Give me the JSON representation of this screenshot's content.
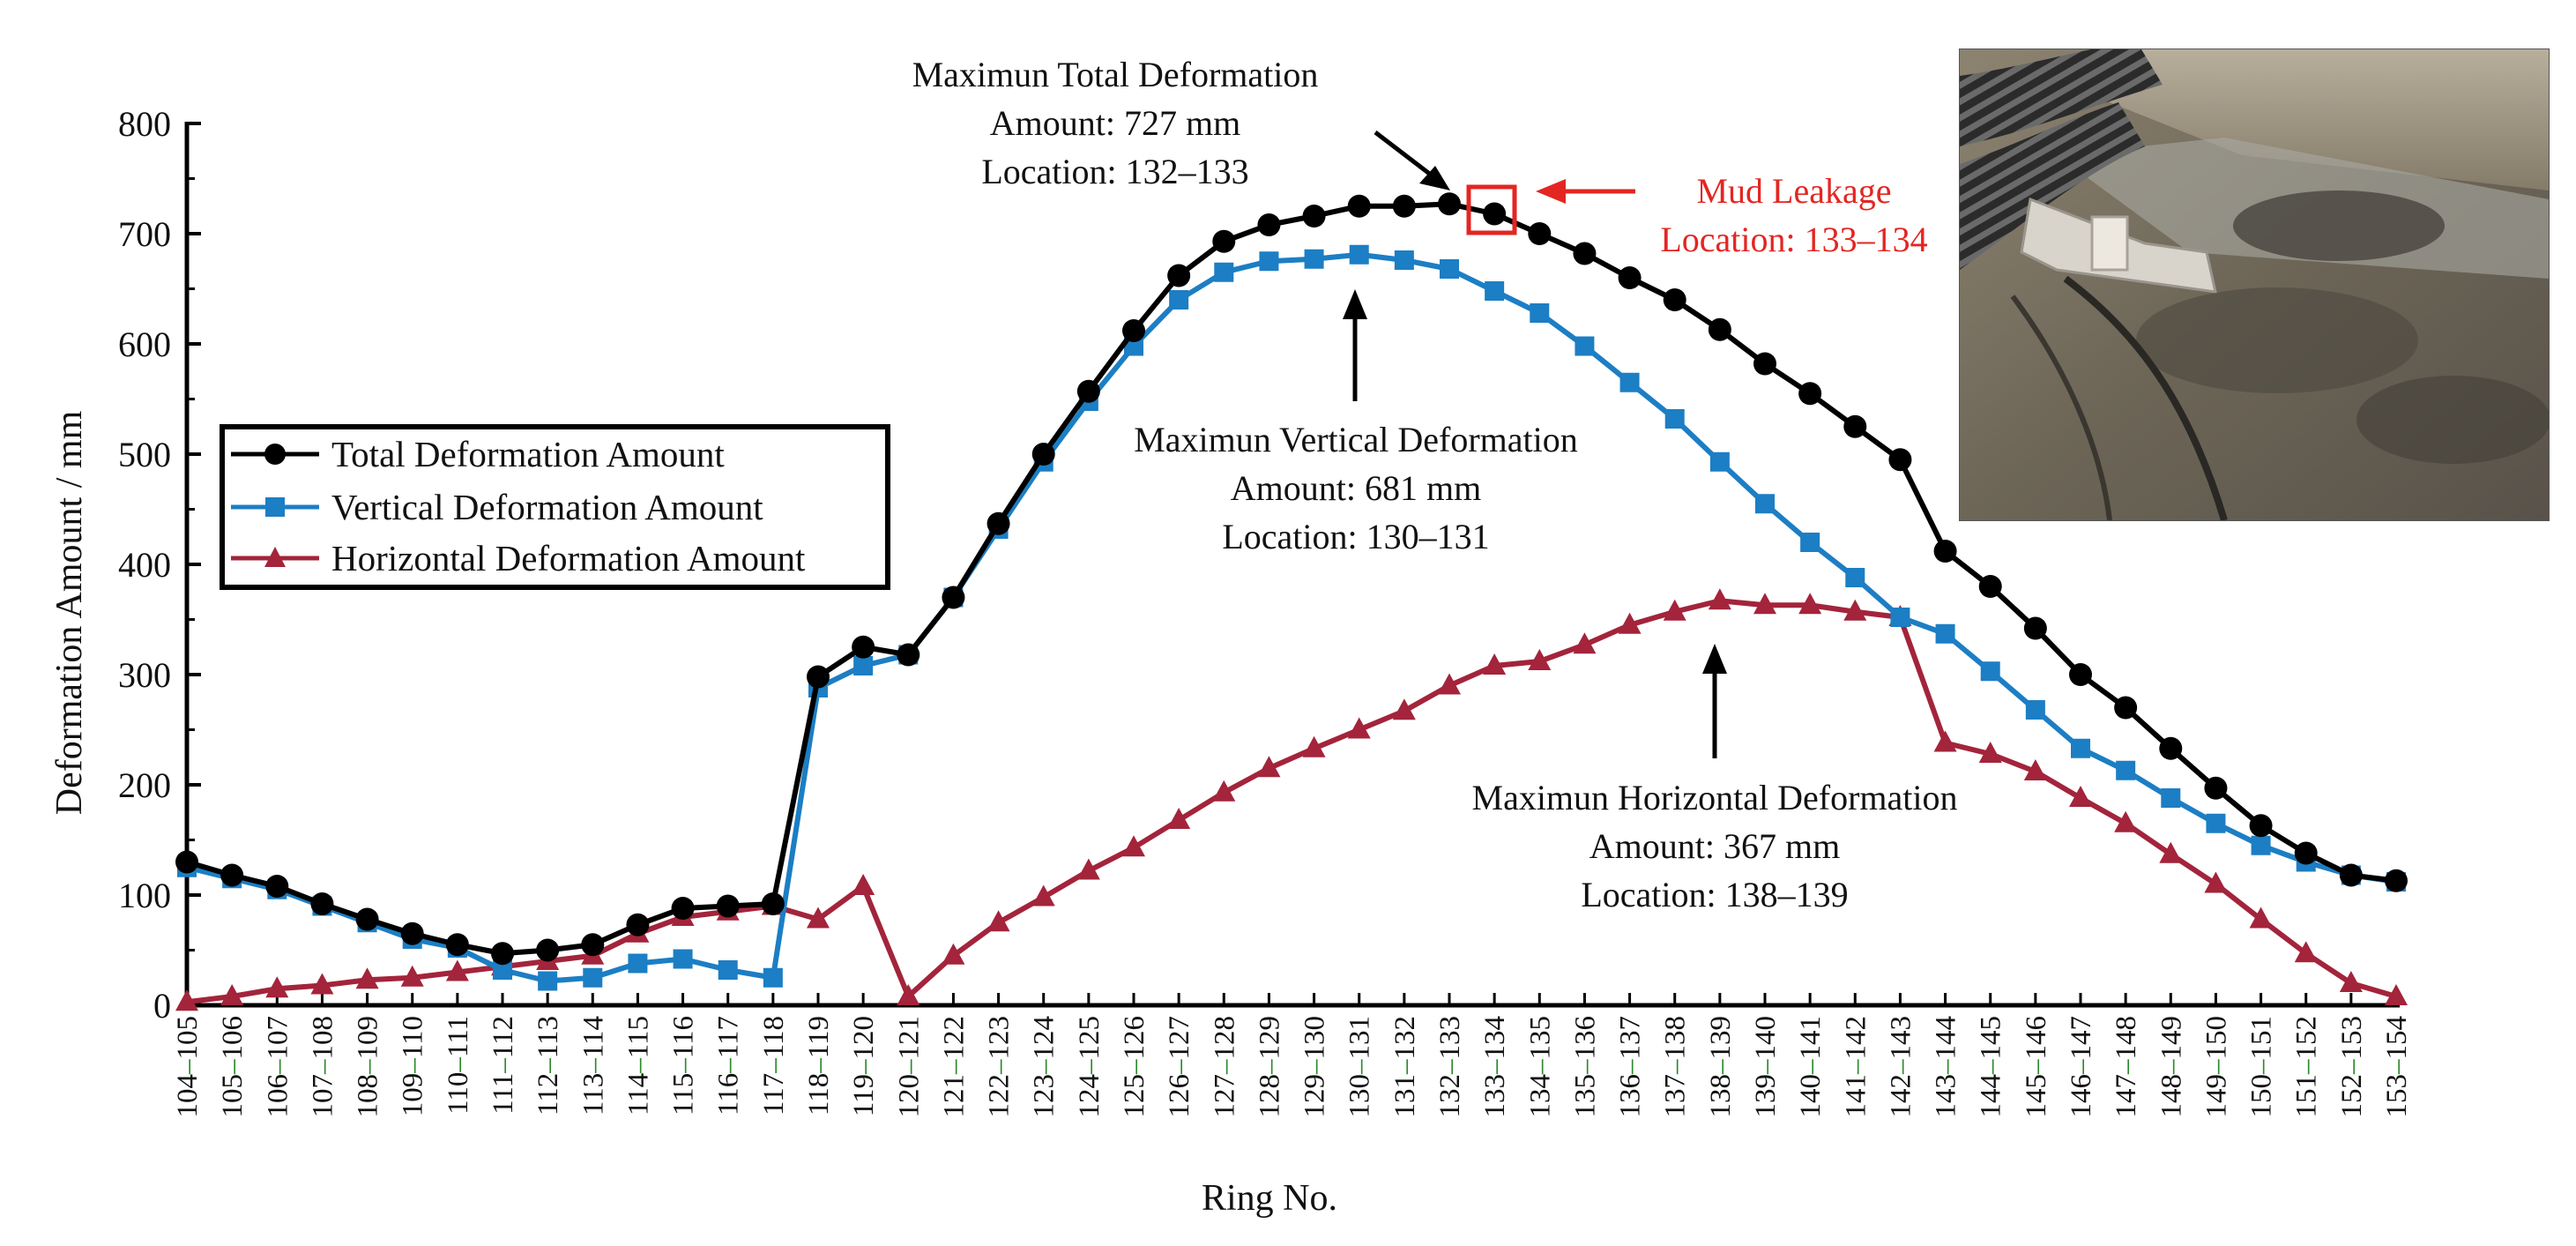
{
  "chart_data": {
    "type": "line",
    "xlabel": "Ring No.",
    "ylabel": "Deformation Amount / mm",
    "ylim": [
      0,
      800
    ],
    "yticks": [
      "0",
      "100",
      "200",
      "300",
      "400",
      "500",
      "600",
      "700",
      "800"
    ],
    "grid": false,
    "legend_position": "left-middle",
    "categories": [
      "104–105",
      "105–106",
      "106–107",
      "107–108",
      "108–109",
      "109–110",
      "110–111",
      "111–112",
      "112–113",
      "113–114",
      "114–115",
      "115–116",
      "116–117",
      "117–118",
      "118–119",
      "119–120",
      "120–121",
      "121–122",
      "122–123",
      "123–124",
      "124–125",
      "125–126",
      "126–127",
      "127–128",
      "128–129",
      "129–130",
      "130–131",
      "131–132",
      "132–133",
      "133–134",
      "134–135",
      "135–136",
      "136–137",
      "137–138",
      "138–139",
      "139–140",
      "140–141",
      "141–142",
      "142–143",
      "143–144",
      "144–145",
      "145–146",
      "146–147",
      "147–148",
      "148–149",
      "149–150",
      "150–151",
      "151–152",
      "152–153",
      "153–154"
    ],
    "series": [
      {
        "name": "Total Deformation Amount",
        "color": "#000000",
        "marker": "circle",
        "values": [
          130,
          118,
          108,
          92,
          78,
          65,
          55,
          47,
          50,
          55,
          73,
          88,
          90,
          92,
          298,
          325,
          318,
          370,
          437,
          500,
          557,
          612,
          662,
          693,
          708,
          716,
          725,
          725,
          727,
          718,
          700,
          682,
          660,
          640,
          613,
          582,
          555,
          525,
          495,
          412,
          380,
          342,
          300,
          270,
          233,
          197,
          163,
          138,
          118,
          113
        ]
      },
      {
        "name": "Vertical Deformation Amount",
        "color": "#1c7ec4",
        "marker": "square",
        "values": [
          125,
          115,
          105,
          90,
          75,
          60,
          52,
          32,
          22,
          25,
          38,
          42,
          32,
          25,
          288,
          308,
          318,
          370,
          432,
          493,
          548,
          598,
          640,
          665,
          675,
          677,
          681,
          676,
          668,
          648,
          628,
          598,
          565,
          532,
          493,
          455,
          420,
          388,
          352,
          337,
          303,
          268,
          233,
          213,
          188,
          165,
          145,
          130,
          118,
          112
        ]
      },
      {
        "name": "Horizontal Deformation Amount",
        "color": "#a3243b",
        "marker": "triangle",
        "values": [
          3,
          8,
          15,
          18,
          23,
          25,
          30,
          35,
          40,
          45,
          65,
          80,
          85,
          90,
          78,
          108,
          8,
          45,
          75,
          98,
          122,
          143,
          168,
          193,
          215,
          233,
          250,
          267,
          290,
          308,
          312,
          327,
          345,
          357,
          367,
          363,
          363,
          357,
          352,
          238,
          228,
          212,
          188,
          165,
          137,
          110,
          78,
          47,
          20,
          8
        ]
      }
    ],
    "annotations": {
      "total": [
        "Maximun Total Deformation",
        "Amount: 727 mm",
        "Location: 132–133"
      ],
      "vertical": [
        "Maximun Vertical Deformation",
        "Amount: 681 mm",
        "Location: 130–131"
      ],
      "horizontal": [
        "Maximun Horizontal Deformation",
        "Amount: 367 mm",
        "Location: 138–139"
      ],
      "mud": [
        "Mud Leakage",
        "Location: 133–134"
      ]
    }
  },
  "colors": {
    "axis": "#000000",
    "mud": "#e32622",
    "tick_label_alt": "#2a8a2a"
  }
}
